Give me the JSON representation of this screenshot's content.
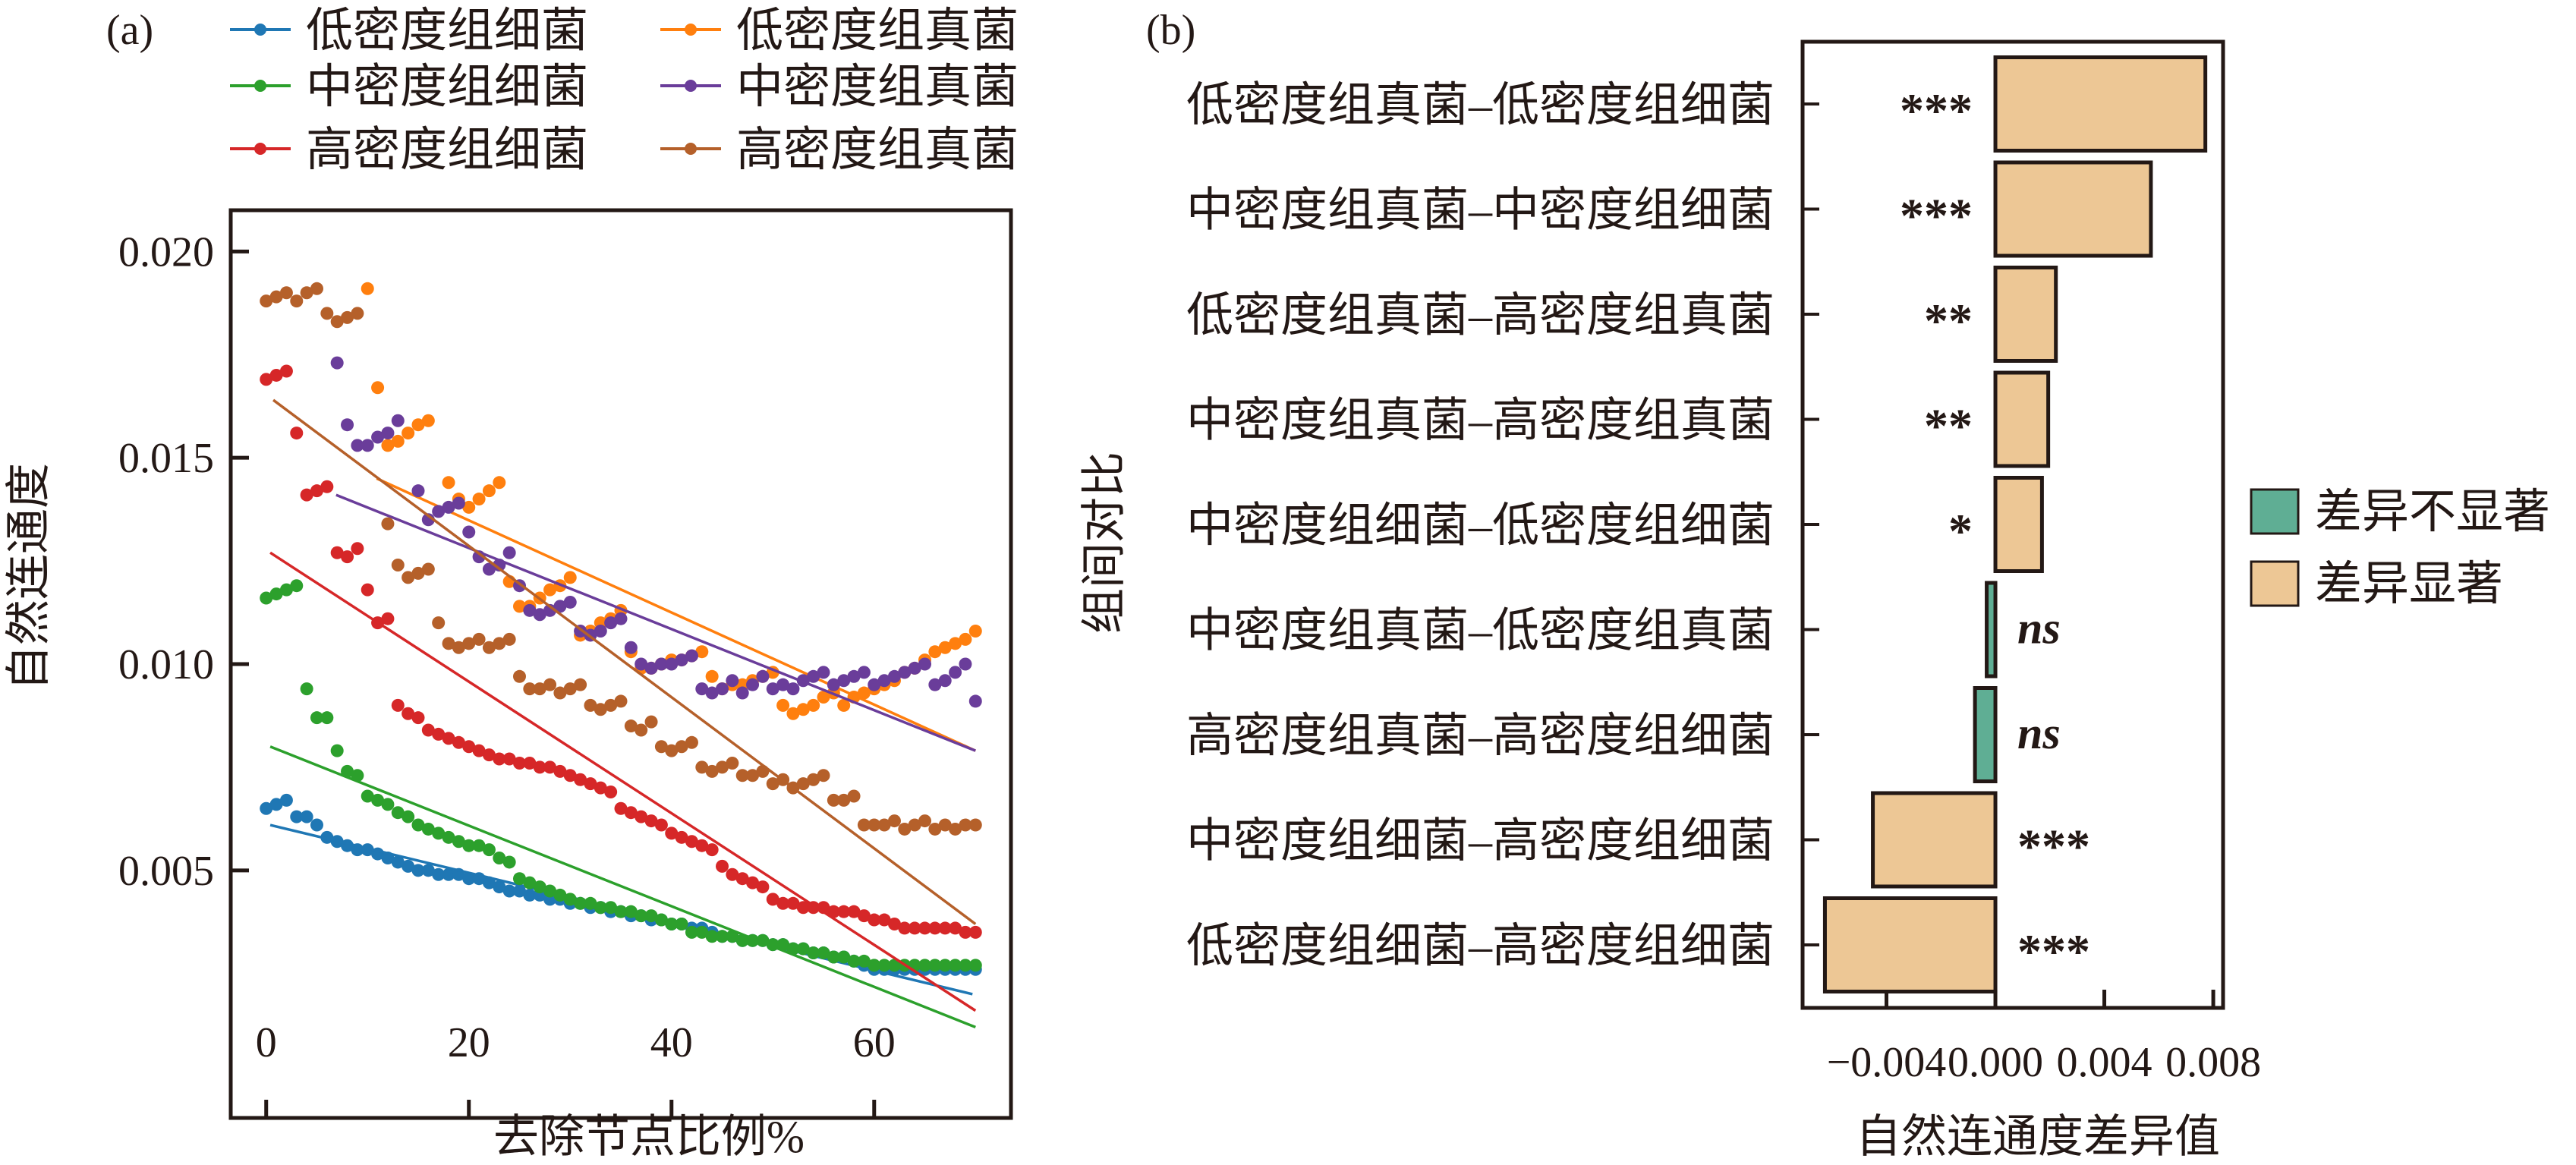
{
  "chart_data": [
    {
      "type": "scatter",
      "panel_label": "(a)",
      "xlabel": "去除节点比例%",
      "ylabel": "自然连通度",
      "xlim": [
        -3.5,
        73.5
      ],
      "ylim": [
        -0.001,
        0.021
      ],
      "xticks": [
        "0",
        "20",
        "40",
        "60"
      ],
      "xtick_values": [
        0,
        20,
        40,
        60
      ],
      "yticks": [
        "0.005",
        "0.010",
        "0.015",
        "0.020"
      ],
      "ytick_values": [
        0.005,
        0.01,
        0.015,
        0.02
      ],
      "legend_position": "top",
      "x_start": 0,
      "x_step": 1,
      "series": [
        {
          "name": "低密度组细菌",
          "color": "#1f77b4",
          "fit": [
            [
              0.4,
              0.0061
            ],
            [
              69.7,
              0.002
            ]
          ],
          "values": [
            0.0065,
            0.0066,
            0.0067,
            0.0063,
            0.0063,
            0.0061,
            0.0058,
            0.0057,
            0.0056,
            0.0055,
            0.0055,
            0.0054,
            0.0053,
            0.0052,
            0.0051,
            0.005,
            0.005,
            0.0049,
            0.0049,
            0.0049,
            0.0048,
            0.0048,
            0.0047,
            0.0046,
            0.0045,
            0.0045,
            0.0044,
            0.0044,
            0.0043,
            0.0043,
            0.0042,
            0.0042,
            0.0041,
            0.0041,
            0.004,
            0.004,
            0.0039,
            0.0039,
            0.0038,
            0.0038,
            0.0037,
            0.0037,
            0.0036,
            0.0036,
            0.0035,
            0.0034,
            0.0034,
            0.0033,
            0.0033,
            0.0033,
            0.0032,
            0.0032,
            0.0031,
            0.0031,
            0.003,
            0.003,
            0.0029,
            0.0029,
            0.0028,
            0.0027,
            0.0026,
            0.0026,
            0.0026,
            0.0026,
            0.0026,
            0.0026,
            0.0026,
            0.0026,
            0.0026,
            0.0026,
            0.0026
          ]
        },
        {
          "name": "低密度组真菌",
          "color": "#ff7f0e",
          "fit": [
            [
              10.9,
              0.0145
            ],
            [
              70,
              0.0079
            ]
          ],
          "values": [
            null,
            null,
            null,
            null,
            null,
            null,
            null,
            null,
            null,
            null,
            0.0191,
            0.0167,
            0.0153,
            0.0154,
            0.0156,
            0.0158,
            0.0159,
            null,
            0.0144,
            0.014,
            0.0138,
            0.014,
            0.0142,
            0.0144,
            0.012,
            0.0114,
            0.0114,
            0.0116,
            0.0118,
            0.0119,
            0.0121,
            0.0107,
            0.0108,
            0.011,
            0.0111,
            0.0113,
            0.0103,
            0.0099,
            0.0099,
            0.01,
            0.0101,
            0.0101,
            0.0102,
            0.0103,
            0.0097,
            0.0094,
            0.0095,
            0.0095,
            0.0096,
            0.0097,
            0.0098,
            0.009,
            0.0088,
            0.0089,
            0.009,
            0.0092,
            0.0093,
            0.009,
            0.0092,
            0.0093,
            0.0094,
            0.0095,
            0.0096,
            0.0098,
            0.0099,
            0.0101,
            0.0103,
            0.0104,
            0.0105,
            0.0106,
            0.0108
          ]
        },
        {
          "name": "中密度组细菌",
          "color": "#2ca02c",
          "fit": [
            [
              0.4,
              0.008
            ],
            [
              70,
              0.0012
            ]
          ],
          "values": [
            0.0116,
            0.0117,
            0.0118,
            0.0119,
            0.0094,
            0.0087,
            0.0087,
            0.0079,
            0.0074,
            0.0073,
            0.0068,
            0.0067,
            0.0066,
            0.0064,
            0.0063,
            0.0061,
            0.006,
            0.0059,
            0.0058,
            0.0057,
            0.0056,
            0.0056,
            0.0055,
            0.0053,
            0.0052,
            0.0048,
            0.0047,
            0.0046,
            0.0045,
            0.0044,
            0.0043,
            0.0042,
            0.0042,
            0.0041,
            0.0041,
            0.004,
            0.004,
            0.0039,
            0.0039,
            0.0038,
            0.0037,
            0.0037,
            0.0035,
            0.0035,
            0.0034,
            0.0034,
            0.0034,
            0.0033,
            0.0033,
            0.0033,
            0.0032,
            0.0032,
            0.0031,
            0.0031,
            0.003,
            0.003,
            0.0029,
            0.0029,
            0.0028,
            0.0028,
            0.0027,
            0.0027,
            0.0027,
            0.0027,
            0.0027,
            0.0027,
            0.0027,
            0.0027,
            0.0027,
            0.0027,
            0.0027
          ]
        },
        {
          "name": "中密度组真菌",
          "color": "#6a3d9a",
          "fit": [
            [
              6.9,
              0.0141
            ],
            [
              70,
              0.0079
            ]
          ],
          "values": [
            null,
            null,
            null,
            null,
            null,
            null,
            null,
            0.0173,
            0.0158,
            0.0153,
            0.0153,
            0.0155,
            0.0156,
            0.0159,
            null,
            0.0142,
            0.0135,
            0.0137,
            0.0138,
            0.0139,
            0.0132,
            0.0126,
            0.0123,
            0.0124,
            0.0127,
            0.0119,
            0.0113,
            0.0112,
            0.0113,
            0.0114,
            0.0115,
            0.0108,
            0.0107,
            0.0108,
            0.011,
            0.0111,
            0.0104,
            0.01,
            0.0099,
            0.01,
            0.01,
            0.0101,
            0.0102,
            0.0094,
            0.0093,
            0.0094,
            0.0096,
            0.0093,
            0.0095,
            0.0097,
            0.0094,
            0.0095,
            0.0094,
            0.0096,
            0.0097,
            0.0098,
            0.0095,
            0.0096,
            0.0097,
            0.0098,
            0.0095,
            0.0096,
            0.0097,
            0.0098,
            0.0099,
            0.01,
            0.0095,
            0.0096,
            0.0098,
            0.01,
            0.0091
          ]
        },
        {
          "name": "高密度组细菌",
          "color": "#d62728",
          "fit": [
            [
              0.4,
              0.0127
            ],
            [
              70,
              0.0016
            ]
          ],
          "values": [
            0.0169,
            0.017,
            0.0171,
            0.0156,
            0.0141,
            0.0142,
            0.0143,
            0.0127,
            0.0126,
            0.0128,
            0.0118,
            0.011,
            0.0111,
            0.009,
            0.0088,
            0.0087,
            0.0084,
            0.0083,
            0.0082,
            0.0081,
            0.008,
            0.0079,
            0.0078,
            0.0077,
            0.0077,
            0.0076,
            0.0076,
            0.0075,
            0.0075,
            0.0074,
            0.0073,
            0.0072,
            0.0071,
            0.007,
            0.0069,
            0.0065,
            0.0064,
            0.0063,
            0.0062,
            0.0061,
            0.0059,
            0.0058,
            0.0057,
            0.0056,
            0.0055,
            0.0051,
            0.0049,
            0.0048,
            0.0047,
            0.0046,
            0.0043,
            0.0042,
            0.0042,
            0.0041,
            0.0041,
            0.0041,
            0.004,
            0.004,
            0.004,
            0.0039,
            0.0038,
            0.0038,
            0.0037,
            0.0036,
            0.0036,
            0.0036,
            0.0036,
            0.0036,
            0.0036,
            0.0035,
            0.0035
          ]
        },
        {
          "name": "高密度组真菌",
          "color": "#b5602a",
          "fit": [
            [
              0.7,
              0.0164
            ],
            [
              70,
              0.0037
            ]
          ],
          "values": [
            0.0188,
            0.0189,
            0.019,
            0.0188,
            0.019,
            0.0191,
            0.0185,
            0.0183,
            0.0184,
            0.0185,
            null,
            null,
            0.0134,
            0.0124,
            0.0121,
            0.0122,
            0.0123,
            0.011,
            0.0105,
            0.0104,
            0.0105,
            0.0106,
            0.0104,
            0.0105,
            0.0106,
            0.0097,
            0.0094,
            0.0094,
            0.0095,
            0.0093,
            0.0094,
            0.0095,
            0.009,
            0.0089,
            0.009,
            0.0091,
            0.0085,
            0.0084,
            0.0086,
            0.008,
            0.0079,
            0.008,
            0.0081,
            0.0075,
            0.0074,
            0.0075,
            0.0076,
            0.0073,
            0.0073,
            0.0074,
            0.0071,
            0.0072,
            0.007,
            0.0071,
            0.0072,
            0.0073,
            0.0067,
            0.0067,
            0.0068,
            0.0061,
            0.0061,
            0.0061,
            0.0062,
            0.006,
            0.0061,
            0.0062,
            0.006,
            0.0061,
            0.006,
            0.0061,
            0.0061
          ]
        }
      ]
    },
    {
      "type": "bar",
      "orientation": "horizontal",
      "panel_label": "(b)",
      "xlabel": "自然连通度差异值",
      "ylabel": "组间对比",
      "xlim": [
        -0.00708,
        0.00836
      ],
      "xticks": [
        "−0.004",
        "0.000",
        "0.004",
        "0.008"
      ],
      "xtick_values": [
        -0.004,
        0.0,
        0.004,
        0.008
      ],
      "legend_position": "right",
      "legend": [
        {
          "label": "差异不显著",
          "color": "#5fae94"
        },
        {
          "label": "差异显著",
          "color": "#edc795"
        }
      ],
      "categories": [
        "低密度组真菌–低密度组细菌",
        "中密度组真菌–中密度组细菌",
        "低密度组真菌–高密度组真菌",
        "中密度组真菌–高密度组真菌",
        "中密度组细菌–低密度组细菌",
        "中密度组真菌–低密度组真菌",
        "高密度组真菌–高密度组细菌",
        "中密度组细菌–高密度组细菌",
        "低密度组细菌–高密度组细菌"
      ],
      "values": [
        0.00771,
        0.00571,
        0.00222,
        0.00194,
        0.00171,
        -0.00032,
        -0.00075,
        -0.0045,
        -0.00626
      ],
      "significance": [
        "***",
        "***",
        "**",
        "**",
        "*",
        "ns",
        "ns",
        "***",
        "***"
      ],
      "significant": [
        true,
        true,
        true,
        true,
        true,
        false,
        false,
        true,
        true
      ]
    }
  ]
}
